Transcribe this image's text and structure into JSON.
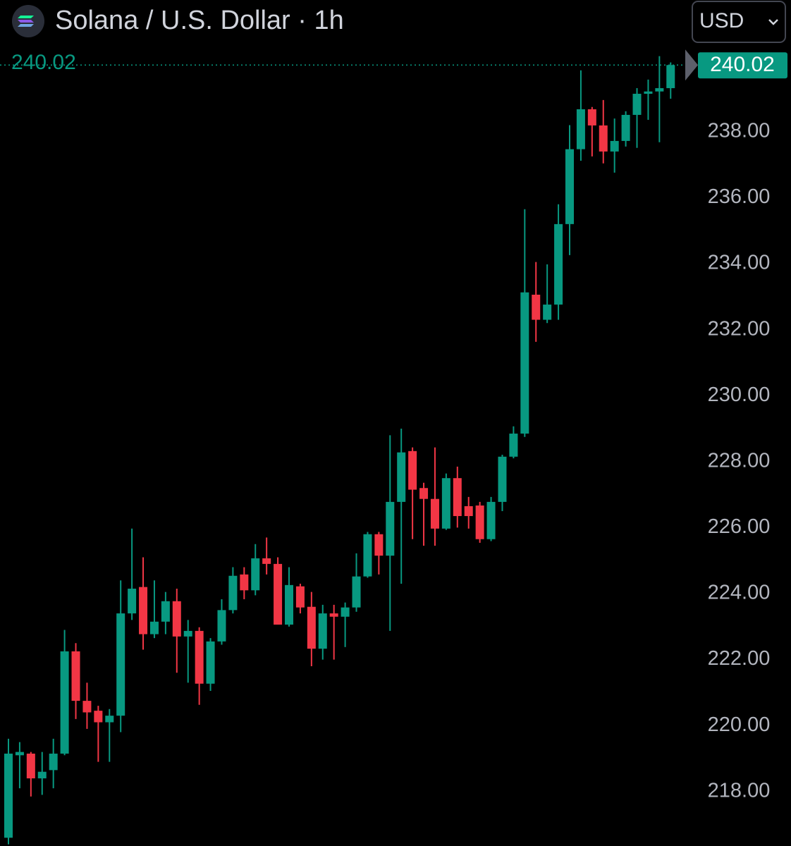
{
  "header": {
    "title": "Solana / U.S. Dollar · 1h",
    "currency": "USD"
  },
  "chart_data": {
    "type": "candlestick",
    "up_color": "#089981",
    "down_color": "#f23645",
    "open": [
      216.6,
      219.1,
      219.15,
      218.4,
      218.65,
      219.15,
      222.25,
      220.75,
      220.45,
      220.1,
      220.3,
      223.4,
      224.2,
      222.77,
      223.15,
      223.77,
      222.7,
      222.87,
      221.27,
      222.55,
      223.5,
      224.58,
      224.1,
      225.07,
      224.9,
      223.06,
      224.22,
      223.6,
      222.33,
      223.4,
      223.3,
      223.58,
      224.52,
      225.8,
      225.15,
      226.78,
      228.32,
      227.2,
      226.87,
      225.97,
      227.5,
      226.65,
      226.67,
      225.65,
      226.78,
      228.15,
      228.85,
      233.06,
      232.3,
      232.76,
      235.2,
      237.47,
      238.68,
      238.19,
      237.4,
      237.72,
      238.51,
      239.15,
      239.22,
      239.32
    ],
    "high": [
      219.6,
      219.5,
      219.2,
      219.2,
      219.6,
      222.9,
      222.5,
      221.3,
      220.6,
      220.5,
      224.4,
      225.97,
      225.1,
      224.4,
      224.05,
      224.15,
      223.2,
      222.98,
      222.65,
      223.83,
      224.8,
      224.8,
      225.5,
      225.7,
      225.1,
      224.8,
      224.3,
      224.05,
      223.66,
      223.66,
      223.73,
      225.22,
      225.87,
      225.87,
      228.8,
      229.0,
      228.43,
      227.36,
      228.43,
      227.64,
      227.85,
      226.93,
      226.78,
      226.93,
      228.21,
      229.07,
      235.65,
      234.05,
      233.98,
      235.8,
      238.2,
      239.86,
      238.75,
      238.96,
      238.4,
      238.62,
      239.32,
      239.58,
      240.29,
      240.1
    ],
    "low": [
      216.4,
      218.1,
      217.85,
      217.9,
      218.1,
      219.1,
      220.2,
      219.9,
      218.9,
      218.9,
      219.8,
      223.2,
      222.3,
      222.65,
      222.77,
      221.6,
      221.3,
      220.63,
      221.05,
      222.45,
      223.4,
      223.83,
      223.95,
      224.58,
      223.06,
      223.0,
      223.4,
      221.8,
      222.0,
      222.0,
      222.38,
      223.45,
      224.48,
      224.58,
      222.87,
      224.3,
      225.65,
      225.45,
      225.45,
      225.93,
      226.0,
      225.97,
      225.54,
      225.59,
      226.5,
      228.1,
      228.75,
      231.63,
      232.2,
      232.3,
      234.26,
      237.12,
      237.25,
      237.04,
      236.76,
      237.55,
      237.51,
      238.36,
      237.68,
      239.0
    ],
    "close": [
      219.15,
      219.2,
      218.4,
      218.6,
      219.15,
      222.25,
      220.75,
      220.4,
      220.1,
      220.3,
      223.4,
      224.15,
      222.77,
      223.15,
      223.77,
      222.7,
      222.87,
      221.27,
      222.55,
      223.5,
      224.54,
      224.1,
      225.07,
      224.9,
      223.06,
      224.26,
      223.58,
      222.33,
      223.4,
      223.3,
      223.58,
      224.52,
      225.8,
      225.15,
      226.78,
      228.28,
      227.15,
      226.87,
      225.97,
      227.5,
      226.35,
      226.35,
      225.65,
      226.78,
      228.15,
      228.85,
      233.13,
      232.3,
      232.76,
      235.2,
      237.47,
      238.68,
      238.19,
      237.4,
      237.72,
      238.51,
      239.15,
      239.22,
      239.32,
      240.02
    ],
    "last_price": 240.02,
    "ylim": [
      216.35,
      240.71
    ],
    "yticks": [
      {
        "value": 218,
        "label": "218.00"
      },
      {
        "value": 220,
        "label": "220.00"
      },
      {
        "value": 222,
        "label": "222.00"
      },
      {
        "value": 224,
        "label": "224.00"
      },
      {
        "value": 226,
        "label": "226.00"
      },
      {
        "value": 228,
        "label": "228.00"
      },
      {
        "value": 230,
        "label": "230.00"
      },
      {
        "value": 232,
        "label": "232.00"
      },
      {
        "value": 234,
        "label": "234.00"
      },
      {
        "value": 236,
        "label": "236.00"
      },
      {
        "value": 238,
        "label": "238.00"
      }
    ]
  }
}
